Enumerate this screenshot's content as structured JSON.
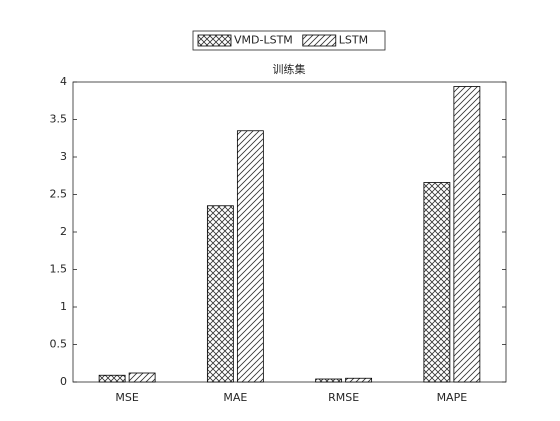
{
  "chart_data": {
    "type": "bar",
    "title": "训练集",
    "categories": [
      "MSE",
      "MAE",
      "RMSE",
      "MAPE"
    ],
    "series": [
      {
        "name": "VMD-LSTM",
        "color": "#000000",
        "hatch": "cross",
        "values": [
          0.09,
          2.35,
          0.04,
          2.66
        ]
      },
      {
        "name": "LSTM",
        "color": "#000000",
        "hatch": "diagonal",
        "values": [
          0.12,
          3.35,
          0.05,
          3.94
        ]
      }
    ],
    "ylim": [
      0,
      4
    ],
    "yticks": [
      0,
      0.5,
      1,
      1.5,
      2,
      2.5,
      3,
      3.5,
      4
    ],
    "legend": "top"
  }
}
